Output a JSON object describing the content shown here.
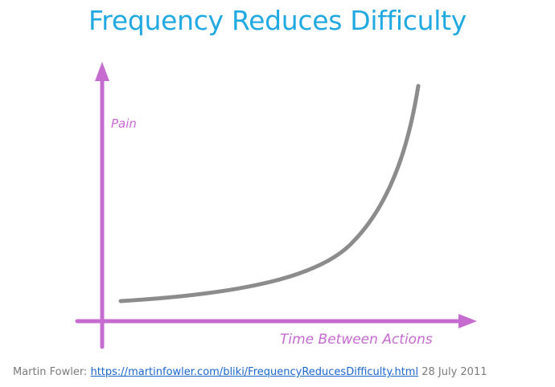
{
  "slide": {
    "title": "Frequency Reduces Difficulty"
  },
  "diagram": {
    "y_axis_label": "Pain",
    "x_axis_label": "Time Between Actions",
    "axis_color": "#c66bd0",
    "curve_color": "#8c8c8c",
    "curve_shape": "exponential-increase"
  },
  "caption": {
    "author": "Martin Fowler:",
    "link_text": "https://martinfowler.com/bliki/FrequencyReducesDifficulty.html",
    "date": "28 July 2011"
  }
}
